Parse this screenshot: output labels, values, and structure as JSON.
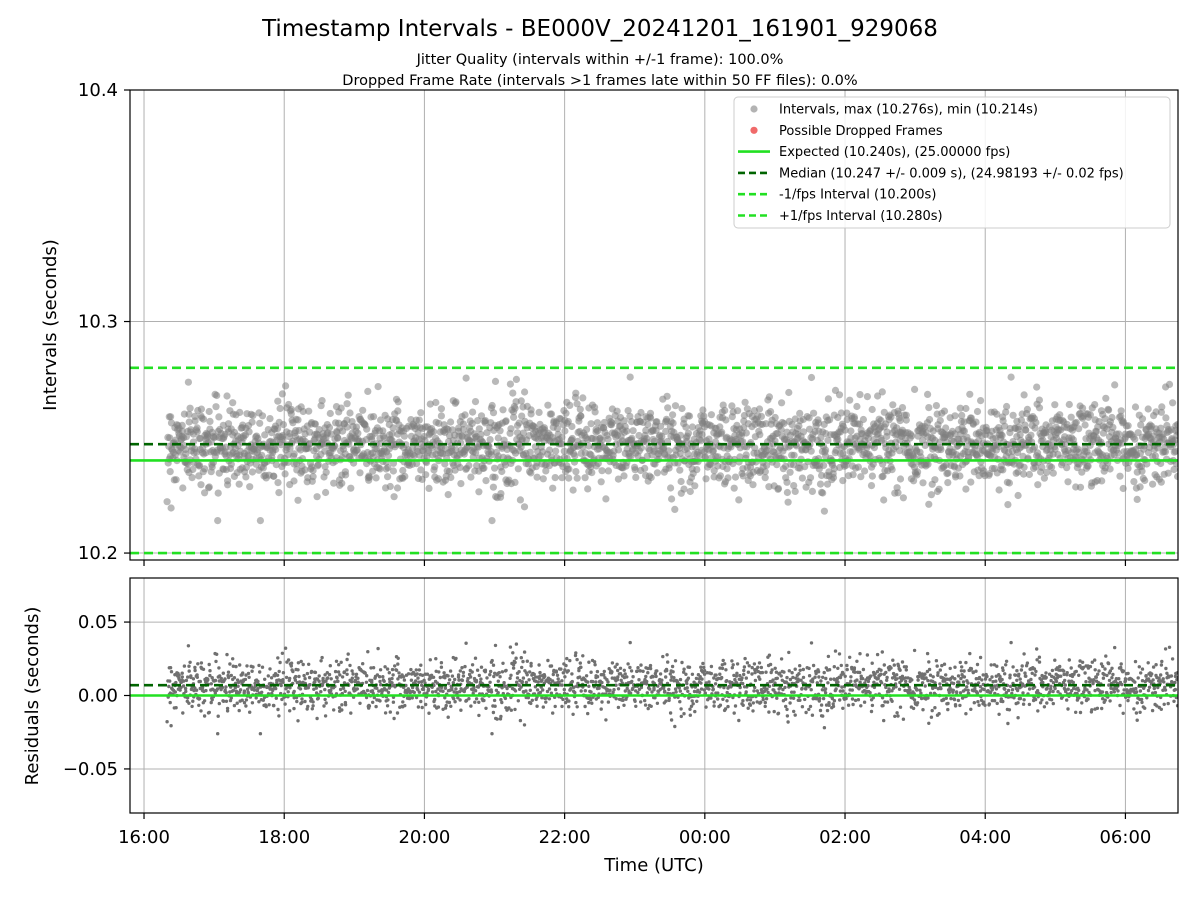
{
  "figure": {
    "title": "Timestamp Intervals - BE000V_20241201_161901_929068",
    "subtitle_1": "Jitter Quality (intervals within +/-1 frame): 100.0%",
    "subtitle_2": "Dropped Frame Rate (intervals >1 frames late within 50 FF files): 0.0%"
  },
  "chart_data": [
    {
      "type": "scatter",
      "xlabel": "",
      "ylabel": "Intervals (seconds)",
      "x_time_range": [
        "16:00",
        "06:45"
      ],
      "ylim": [
        10.197,
        10.4
      ],
      "y_ticks": [
        10.2,
        10.3,
        10.4
      ],
      "y_tick_labels": [
        "10.2",
        "10.3",
        "10.4"
      ],
      "x_tick_labels": [
        "16:00",
        "18:00",
        "20:00",
        "22:00",
        "00:00",
        "02:00",
        "04:00",
        "06:00"
      ],
      "grid": true,
      "legend_placement": "top-right",
      "colors": {
        "intervals": "#808080",
        "dropped": "#f06a6a",
        "expected": "#22e022",
        "median": "#006400",
        "fps_bounds": "#22e022"
      },
      "data_coverage": {
        "start": "16:20",
        "end": "06:45",
        "center": 10.247,
        "spread": 0.009,
        "max": 10.276,
        "min": 10.214
      },
      "series": [
        {
          "name": "Intervals, max (10.276s), min (10.214s)",
          "kind": "scatter"
        },
        {
          "name": "Possible Dropped Frames",
          "kind": "scatter",
          "values": []
        },
        {
          "name": "Expected (10.240s), (25.00000 fps)",
          "kind": "hline",
          "value": 10.24,
          "style": "solid"
        },
        {
          "name": "Median (10.247 +/- 0.009 s), (24.98193 +/- 0.02 fps)",
          "kind": "hline",
          "value": 10.247,
          "style": "dashed"
        },
        {
          "name": "-1/fps Interval (10.200s)",
          "kind": "hline",
          "value": 10.2,
          "style": "dashed"
        },
        {
          "name": "+1/fps Interval (10.280s)",
          "kind": "hline",
          "value": 10.28,
          "style": "dashed"
        }
      ]
    },
    {
      "type": "scatter",
      "xlabel": "Time (UTC)",
      "ylabel": "Residuals (seconds)",
      "x_time_range": [
        "16:00",
        "06:45"
      ],
      "ylim": [
        -0.08,
        0.08
      ],
      "y_ticks": [
        -0.05,
        0.0,
        0.05
      ],
      "y_tick_labels": [
        "−0.05",
        "0.00",
        "0.05"
      ],
      "x_tick_labels": [
        "16:00",
        "18:00",
        "20:00",
        "22:00",
        "00:00",
        "02:00",
        "04:00",
        "06:00"
      ],
      "grid": true,
      "data_coverage": {
        "start": "16:20",
        "end": "06:45",
        "center": 0.007,
        "spread": 0.009,
        "max": 0.036,
        "min": -0.026
      },
      "hlines": [
        {
          "value": 0.0,
          "style": "solid",
          "color": "#22e022"
        },
        {
          "value": 0.007,
          "style": "dashed",
          "color": "#006400"
        }
      ]
    }
  ]
}
